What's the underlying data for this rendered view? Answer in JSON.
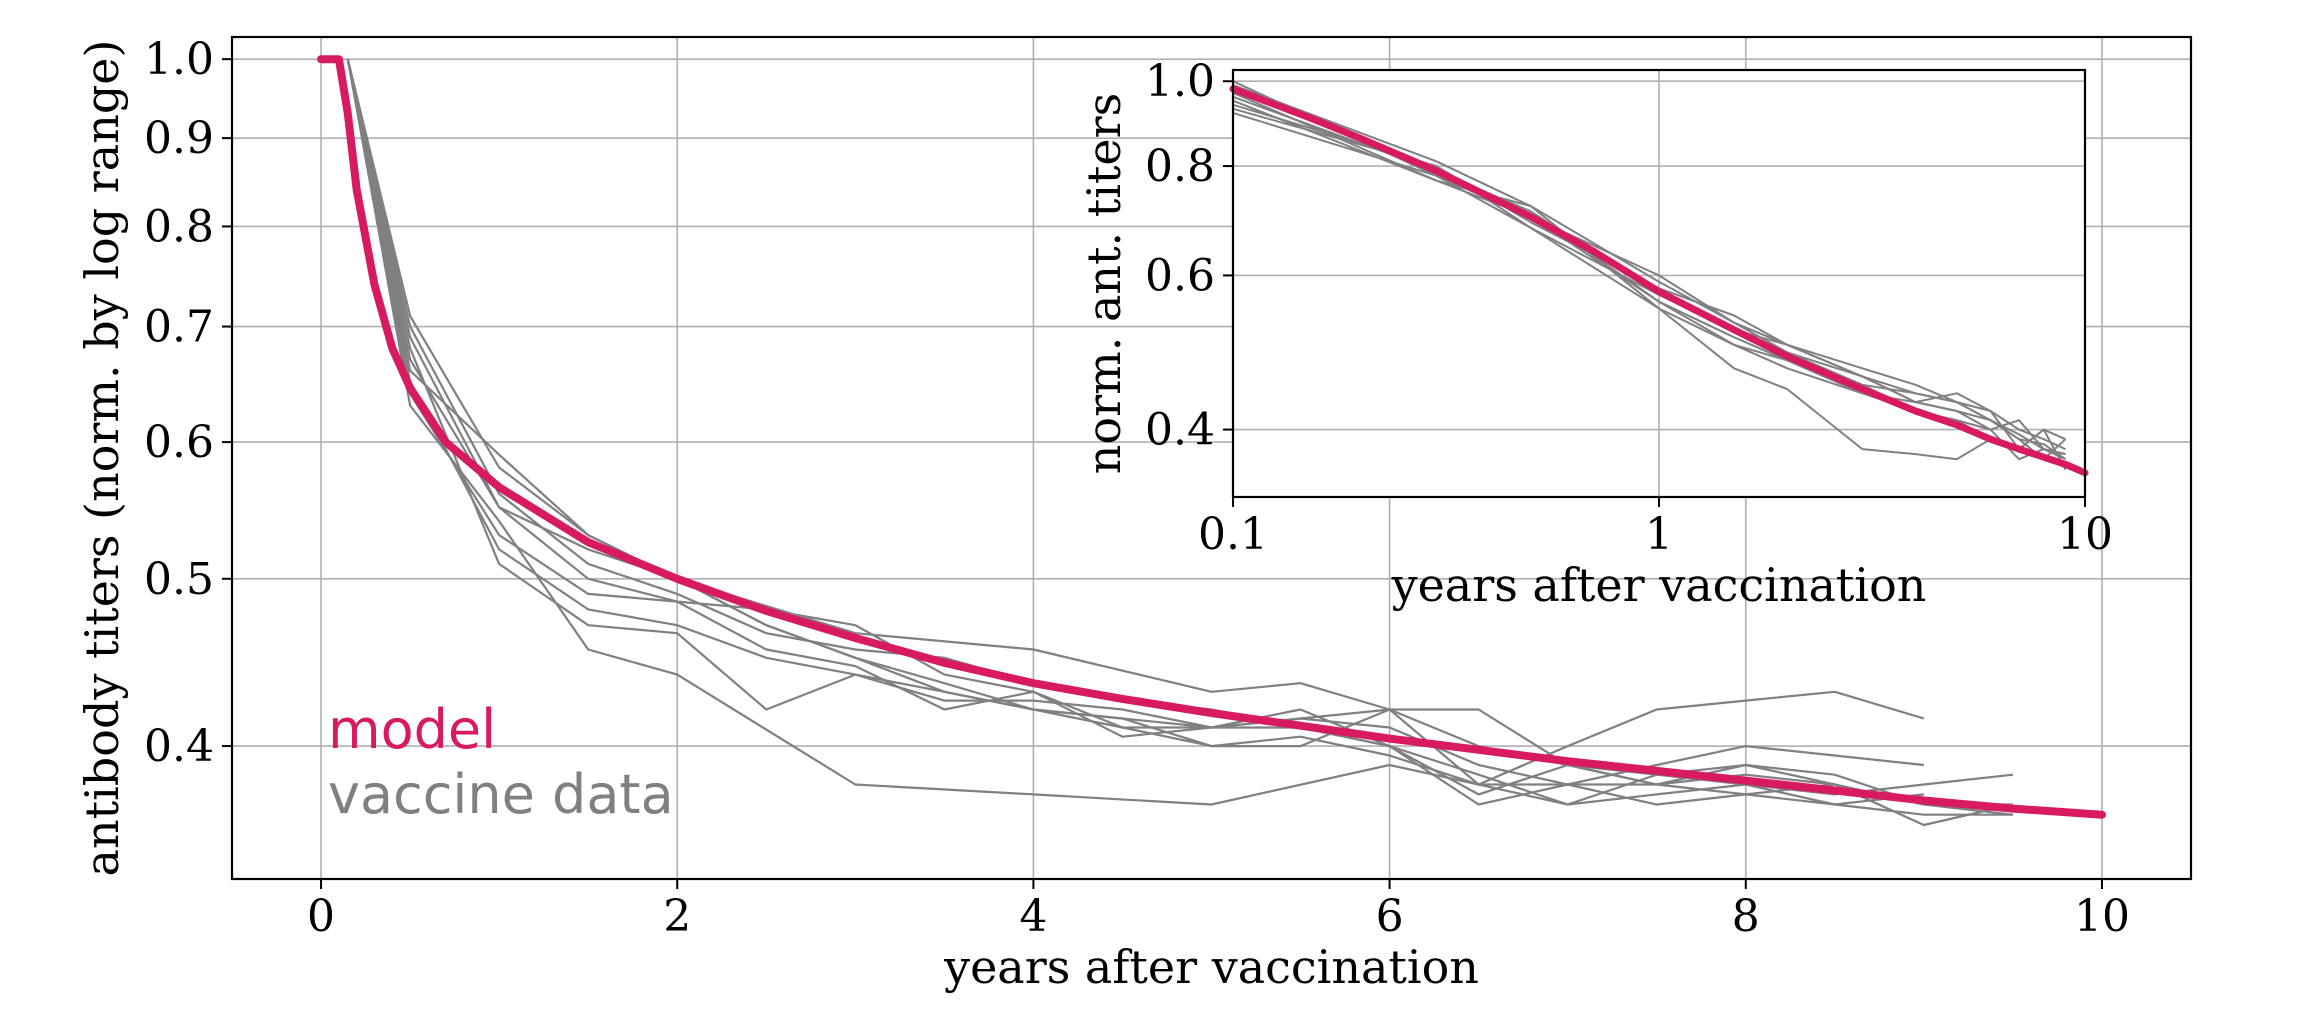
{
  "chart_data": [
    {
      "id": "main",
      "type": "line",
      "xlabel": "years after vaccination",
      "ylabel": "antibody titers (norm. by log range)",
      "yscale": "log",
      "xlim": [
        -0.5,
        10.5
      ],
      "ylim": [
        0.335,
        1.03
      ],
      "grid": true,
      "xticks": [
        0,
        2,
        4,
        6,
        8,
        10
      ],
      "xtick_labels": [
        "0",
        "2",
        "4",
        "6",
        "8",
        "10"
      ],
      "yticks": [
        1.0,
        0.9,
        0.8,
        0.7,
        0.6,
        0.5,
        0.4
      ],
      "ytick_labels": [
        "1.0",
        "0.9",
        "0.8",
        "0.7",
        "0.6",
        "0.5",
        "0.4"
      ],
      "legend": {
        "placement": "lower-left",
        "entries": [
          {
            "label": "model",
            "color": "#d81b60"
          },
          {
            "label": "vaccine data",
            "color": "#808080"
          }
        ]
      },
      "model": {
        "name": "model",
        "color": "#d81b60",
        "x": [
          0,
          0.1,
          0.15,
          0.2,
          0.3,
          0.4,
          0.5,
          0.7,
          1,
          1.5,
          2,
          2.5,
          3,
          3.5,
          4,
          4.5,
          5,
          5.5,
          6,
          6.5,
          7,
          7.5,
          8,
          8.5,
          9,
          9.5,
          10
        ],
        "y": [
          1.0,
          1.0,
          0.93,
          0.84,
          0.74,
          0.68,
          0.645,
          0.6,
          0.565,
          0.525,
          0.5,
          0.479,
          0.462,
          0.447,
          0.435,
          0.426,
          0.418,
          0.411,
          0.404,
          0.398,
          0.392,
          0.387,
          0.382,
          0.377,
          0.372,
          0.368,
          0.365
        ]
      },
      "data_series": {
        "name": "vaccine data",
        "color": "#808080",
        "series": [
          {
            "x": [
              0.15,
              0.5,
              1,
              1.5,
              2,
              3,
              4,
              5,
              5.5,
              6,
              6.5,
              7,
              7.5,
              8,
              8.5,
              9,
              9.5
            ],
            "y": [
              1.0,
              0.66,
              0.59,
              0.53,
              0.5,
              0.465,
              0.455,
              0.43,
              0.435,
              0.42,
              0.4,
              0.39,
              0.38,
              0.39,
              0.38,
              0.37,
              0.365
            ]
          },
          {
            "x": [
              0.15,
              0.5,
              1,
              1.5,
              2,
              2.5,
              3,
              3.5,
              4,
              4.5,
              5,
              5.5,
              6,
              6.5,
              7,
              7.5,
              8,
              8.5,
              9
            ],
            "y": [
              1.0,
              0.69,
              0.55,
              0.5,
              0.485,
              0.48,
              0.47,
              0.44,
              0.43,
              0.405,
              0.41,
              0.415,
              0.42,
              0.42,
              0.39,
              0.385,
              0.39,
              0.385,
              0.37
            ]
          },
          {
            "x": [
              0.15,
              0.5,
              1,
              1.5,
              2,
              3,
              4,
              5,
              6,
              6.5,
              7,
              7.5,
              8,
              8.5,
              9
            ],
            "y": [
              1.0,
              0.63,
              0.54,
              0.455,
              0.44,
              0.38,
              0.375,
              0.37,
              0.39,
              0.38,
              0.4,
              0.42,
              0.425,
              0.43,
              0.415
            ]
          },
          {
            "x": [
              0.15,
              0.5,
              1,
              1.5,
              2,
              2.5,
              3,
              3.5,
              4,
              4.5,
              5,
              5.5,
              6,
              6.5,
              7,
              7.5,
              8,
              8.5,
              9
            ],
            "y": [
              1.0,
              0.68,
              0.51,
              0.47,
              0.465,
              0.42,
              0.44,
              0.43,
              0.42,
              0.415,
              0.4,
              0.4,
              0.42,
              0.38,
              0.38,
              0.39,
              0.4,
              0.395,
              0.39
            ]
          },
          {
            "x": [
              0.15,
              0.5,
              1,
              1.5,
              2,
              2.5,
              3,
              3.5,
              4,
              4.5,
              5,
              5.5,
              6,
              6.5,
              7,
              7.5,
              8,
              8.5,
              9,
              9.5
            ],
            "y": [
              1.0,
              0.67,
              0.55,
              0.52,
              0.5,
              0.47,
              0.45,
              0.43,
              0.42,
              0.415,
              0.41,
              0.41,
              0.4,
              0.37,
              0.38,
              0.37,
              0.375,
              0.37,
              0.365,
              0.365
            ]
          },
          {
            "x": [
              0.15,
              0.5,
              1,
              1.5,
              2,
              2.5,
              3,
              3.5,
              4,
              4.5,
              5,
              5.5,
              6,
              6.5,
              7,
              7.5,
              8,
              8.5,
              9,
              9.5
            ],
            "y": [
              1.0,
              0.64,
              0.53,
              0.49,
              0.485,
              0.455,
              0.445,
              0.42,
              0.43,
              0.41,
              0.41,
              0.42,
              0.4,
              0.385,
              0.37,
              0.375,
              0.38,
              0.375,
              0.38,
              0.385
            ]
          },
          {
            "x": [
              0.15,
              0.5,
              1,
              1.5,
              2,
              2.5,
              3,
              3.5,
              4,
              4.5,
              5,
              5.5,
              6,
              6.5,
              7,
              7.5,
              8,
              8.5,
              9,
              9.5
            ],
            "y": [
              1.0,
              0.65,
              0.52,
              0.48,
              0.47,
              0.45,
              0.44,
              0.425,
              0.425,
              0.42,
              0.41,
              0.415,
              0.41,
              0.39,
              0.38,
              0.38,
              0.385,
              0.38,
              0.37,
              0.37
            ]
          },
          {
            "x": [
              0.15,
              0.5,
              1,
              1.5,
              2,
              2.5,
              3,
              3.5,
              4,
              4.5,
              5,
              5.5,
              6,
              6.5,
              7,
              7.5,
              8,
              8.5,
              9,
              9.5
            ],
            "y": [
              1.0,
              0.7,
              0.56,
              0.51,
              0.49,
              0.465,
              0.455,
              0.45,
              0.435,
              0.425,
              0.42,
              0.41,
              0.4,
              0.375,
              0.39,
              0.38,
              0.375,
              0.38,
              0.36,
              0.37
            ]
          },
          {
            "x": [
              0.15,
              0.5,
              1,
              1.5,
              2,
              2.5,
              3,
              3.5,
              4,
              4.5,
              5,
              5.5,
              6,
              6.5,
              7,
              7.5,
              8,
              8.5,
              9
            ],
            "y": [
              1.0,
              0.71,
              0.58,
              0.53,
              0.5,
              0.47,
              0.45,
              0.435,
              0.42,
              0.41,
              0.4,
              0.405,
              0.395,
              0.38,
              0.37,
              0.385,
              0.38,
              0.37,
              0.375
            ]
          }
        ]
      }
    },
    {
      "id": "inset",
      "type": "line",
      "xlabel": "years after vaccination",
      "ylabel": "norm. ant. titers",
      "xscale": "log",
      "yscale": "log",
      "xlim": [
        0.1,
        10
      ],
      "ylim": [
        0.335,
        1.03
      ],
      "grid": true,
      "xticks": [
        0.1,
        1,
        10
      ],
      "xtick_labels": [
        "0.1",
        "1",
        "10"
      ],
      "yticks": [
        1.0,
        0.8,
        0.6,
        0.4
      ],
      "ytick_labels": [
        "1.0",
        "0.8",
        "0.6",
        "0.4"
      ],
      "model": {
        "name": "model",
        "color": "#d81b60",
        "x": [
          0.1,
          0.15,
          0.2,
          0.3,
          0.5,
          0.7,
          1,
          1.5,
          2,
          3,
          4,
          5,
          6,
          7,
          8,
          9,
          10
        ],
        "y": [
          0.98,
          0.91,
          0.86,
          0.79,
          0.7,
          0.64,
          0.575,
          0.52,
          0.485,
          0.445,
          0.42,
          0.405,
          0.39,
          0.38,
          0.372,
          0.365,
          0.357
        ]
      },
      "data_series": {
        "name": "vaccine data",
        "color": "#808080",
        "series": [
          {
            "x": [
              0.1,
              0.3,
              0.5,
              1,
              1.5,
              2,
              3,
              4,
              5,
              6,
              7,
              8,
              9
            ],
            "y": [
              0.94,
              0.8,
              0.68,
              0.57,
              0.52,
              0.5,
              0.46,
              0.44,
              0.43,
              0.41,
              0.39,
              0.385,
              0.37
            ]
          },
          {
            "x": [
              0.1,
              0.3,
              0.5,
              1,
              1.5,
              2,
              3,
              4,
              5,
              6,
              7,
              8,
              9
            ],
            "y": [
              0.97,
              0.77,
              0.72,
              0.55,
              0.47,
              0.445,
              0.38,
              0.375,
              0.37,
              0.39,
              0.38,
              0.4,
              0.36
            ]
          },
          {
            "x": [
              0.1,
              0.3,
              0.5,
              1,
              1.5,
              2,
              3,
              4,
              5,
              6,
              7,
              8,
              9
            ],
            "y": [
              1.0,
              0.78,
              0.7,
              0.6,
              0.53,
              0.5,
              0.47,
              0.45,
              0.43,
              0.42,
              0.38,
              0.4,
              0.39
            ]
          },
          {
            "x": [
              0.1,
              0.3,
              0.5,
              1,
              1.5,
              2,
              3,
              4,
              5,
              6,
              7,
              8,
              9
            ],
            "y": [
              0.96,
              0.79,
              0.71,
              0.56,
              0.51,
              0.48,
              0.45,
              0.42,
              0.41,
              0.4,
              0.37,
              0.38,
              0.37
            ]
          },
          {
            "x": [
              0.1,
              0.3,
              0.5,
              1,
              1.5,
              2,
              3,
              4,
              5,
              6,
              7,
              8,
              9
            ],
            "y": [
              0.93,
              0.8,
              0.69,
              0.58,
              0.54,
              0.5,
              0.46,
              0.43,
              0.44,
              0.42,
              0.4,
              0.39,
              0.38
            ]
          },
          {
            "x": [
              0.1,
              0.3,
              0.5,
              1,
              1.5,
              2,
              3,
              4,
              5,
              6,
              7,
              8,
              9
            ],
            "y": [
              0.95,
              0.77,
              0.7,
              0.56,
              0.5,
              0.48,
              0.44,
              0.43,
              0.42,
              0.4,
              0.41,
              0.38,
              0.375
            ]
          },
          {
            "x": [
              0.1,
              0.3,
              0.5,
              1,
              1.5,
              2,
              3,
              4,
              5,
              6,
              7,
              8,
              9
            ],
            "y": [
              0.99,
              0.81,
              0.72,
              0.59,
              0.53,
              0.49,
              0.45,
              0.44,
              0.43,
              0.41,
              0.39,
              0.37,
              0.39
            ]
          },
          {
            "x": [
              0.1,
              0.3,
              0.5,
              1,
              1.5,
              2,
              3,
              4,
              5,
              6,
              7,
              8,
              9
            ],
            "y": [
              0.92,
              0.78,
              0.68,
              0.55,
              0.5,
              0.47,
              0.44,
              0.42,
              0.41,
              0.39,
              0.38,
              0.37,
              0.365
            ]
          },
          {
            "x": [
              0.1,
              0.3,
              0.5,
              1,
              1.5,
              2,
              3,
              4,
              5,
              6,
              7,
              8,
              9
            ],
            "y": [
              0.98,
              0.79,
              0.71,
              0.57,
              0.52,
              0.49,
              0.46,
              0.43,
              0.42,
              0.41,
              0.395,
              0.38,
              0.375
            ]
          }
        ]
      }
    }
  ]
}
